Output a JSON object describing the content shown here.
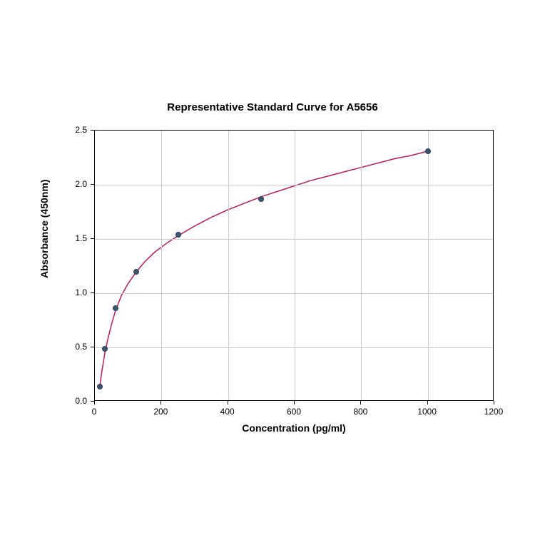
{
  "chart": {
    "type": "scatter_with_curve",
    "title": "Representative Standard Curve for A5656",
    "title_fontsize": 15,
    "title_fontweight": "bold",
    "xlabel": "Concentration (pg/ml)",
    "ylabel": "Absorbance (450nm)",
    "label_fontsize": 14,
    "label_fontweight": "bold",
    "tick_fontsize": 12,
    "background_color": "#ffffff",
    "grid_color": "#cccccc",
    "border_color": "#000000",
    "xlim": [
      0,
      1200
    ],
    "ylim": [
      0,
      2.5
    ],
    "xtick_step": 200,
    "ytick_step": 0.5,
    "xticks": [
      0,
      200,
      400,
      600,
      800,
      1000,
      1200
    ],
    "yticks": [
      0.0,
      0.5,
      1.0,
      1.5,
      2.0,
      2.5
    ],
    "data_points": {
      "x": [
        15,
        31,
        62,
        125,
        250,
        500,
        1000
      ],
      "y": [
        0.14,
        0.49,
        0.86,
        1.2,
        1.54,
        1.87,
        2.31
      ]
    },
    "marker": {
      "color": "#3b5671",
      "border_color": "#2a3e52",
      "size": 8
    },
    "curve": {
      "color": "#c2185b",
      "width": 1.5,
      "points_x": [
        15,
        20,
        30,
        40,
        50,
        62,
        80,
        100,
        125,
        150,
        180,
        220,
        250,
        300,
        350,
        400,
        450,
        500,
        550,
        600,
        650,
        700,
        750,
        800,
        850,
        900,
        950,
        1000
      ],
      "points_y": [
        0.14,
        0.26,
        0.45,
        0.59,
        0.71,
        0.84,
        0.98,
        1.09,
        1.2,
        1.29,
        1.38,
        1.47,
        1.53,
        1.62,
        1.7,
        1.77,
        1.83,
        1.89,
        1.94,
        1.99,
        2.04,
        2.08,
        2.12,
        2.16,
        2.2,
        2.24,
        2.27,
        2.31
      ]
    }
  }
}
